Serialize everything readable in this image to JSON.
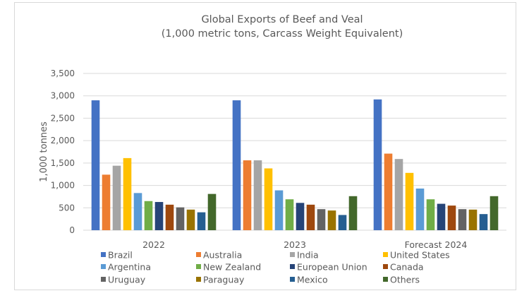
{
  "chart_data": {
    "type": "bar",
    "title_line1": "Global Exports of Beef and Veal",
    "title_line2": "(1,000 metric tons, Carcass Weight Equivalent)",
    "ylabel": "1,000 tonnes",
    "xlabel": "",
    "ylim": [
      0,
      3500
    ],
    "yticks": [
      "0",
      "500",
      "1,000",
      "1,500",
      "2,000",
      "2,500",
      "3,000",
      "3,500"
    ],
    "grid": true,
    "legend_position": "bottom",
    "categories": [
      "2022",
      "2023",
      "Forecast 2024"
    ],
    "series": [
      {
        "name": "Brazil",
        "color": "#4472c4",
        "values": [
          2900,
          2900,
          2920
        ]
      },
      {
        "name": "Australia",
        "color": "#ed7d31",
        "values": [
          1240,
          1560,
          1710
        ]
      },
      {
        "name": "India",
        "color": "#a5a5a5",
        "values": [
          1440,
          1560,
          1590
        ]
      },
      {
        "name": "United States",
        "color": "#ffc000",
        "values": [
          1610,
          1380,
          1280
        ]
      },
      {
        "name": "Argentina",
        "color": "#5b9bd5",
        "values": [
          830,
          890,
          930
        ]
      },
      {
        "name": "New Zealand",
        "color": "#70ad47",
        "values": [
          650,
          690,
          690
        ]
      },
      {
        "name": "European Union",
        "color": "#264478",
        "values": [
          630,
          610,
          590
        ]
      },
      {
        "name": "Canada",
        "color": "#9e480e",
        "values": [
          570,
          570,
          550
        ]
      },
      {
        "name": "Uruguay",
        "color": "#636363",
        "values": [
          510,
          470,
          470
        ]
      },
      {
        "name": "Paraguay",
        "color": "#997300",
        "values": [
          460,
          440,
          460
        ]
      },
      {
        "name": "Mexico",
        "color": "#255e91",
        "values": [
          400,
          340,
          360
        ]
      },
      {
        "name": "Others",
        "color": "#43682b",
        "values": [
          810,
          760,
          760
        ]
      }
    ]
  }
}
